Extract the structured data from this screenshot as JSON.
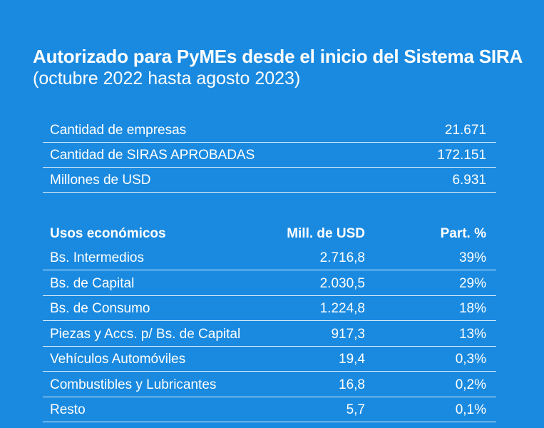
{
  "heading": {
    "title": "Autorizado para PyMEs desde el inicio del Sistema SIRA",
    "subtitle": "(octubre 2022 hasta agosto 2023)"
  },
  "summary": [
    {
      "label": "Cantidad de empresas",
      "value": "21.671"
    },
    {
      "label": "Cantidad de SIRAS APROBADAS",
      "value": "172.151"
    },
    {
      "label": "Millones de USD",
      "value": "6.931"
    }
  ],
  "usos": {
    "headers": [
      "Usos económicos",
      "Mill. de USD",
      "Part. %"
    ],
    "rows": [
      {
        "name": "Bs. Intermedios",
        "usd": "2.716,8",
        "part": "39%"
      },
      {
        "name": "Bs. de Capital",
        "usd": "2.030,5",
        "part": "29%"
      },
      {
        "name": "Bs. de Consumo",
        "usd": "1.224,8",
        "part": "18%"
      },
      {
        "name": "Piezas y Accs. p/ Bs. de Capital",
        "usd": "917,3",
        "part": "13%"
      },
      {
        "name": "Vehículos Automóviles",
        "usd": "19,4",
        "part": "0,3%"
      },
      {
        "name": "Combustibles y Lubricantes",
        "usd": "16,8",
        "part": "0,2%"
      },
      {
        "name": "Resto",
        "usd": "5,7",
        "part": "0,1%"
      }
    ]
  }
}
